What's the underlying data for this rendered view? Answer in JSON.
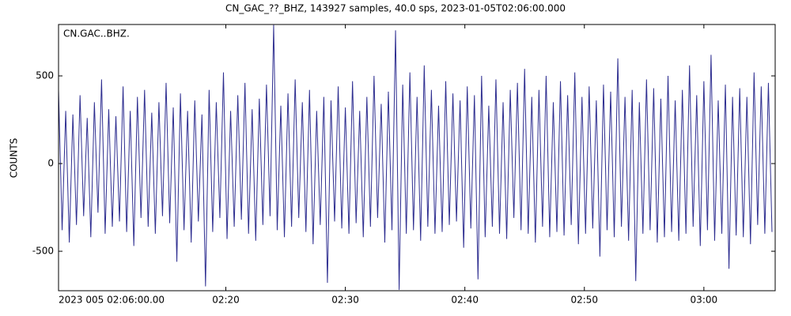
{
  "chart_data": {
    "type": "line",
    "title": "CN_GAC_??_BHZ, 143927 samples, 40.0 sps, 2023-01-05T02:06:00.000",
    "y_label": "COUNTS",
    "x": [
      0,
      18,
      36,
      54,
      72,
      90,
      108,
      126,
      144,
      162,
      180,
      198,
      216,
      234,
      252,
      270,
      288,
      306,
      324,
      342,
      360,
      378,
      396,
      414,
      432,
      450,
      468,
      486,
      504,
      522,
      540,
      558,
      576,
      594,
      612,
      630,
      648,
      666,
      684,
      702,
      720,
      738,
      756,
      774,
      792,
      810,
      828,
      846,
      864,
      882,
      900,
      918,
      936,
      954,
      972,
      990,
      1008,
      1026,
      1044,
      1062,
      1080,
      1098,
      1116,
      1134,
      1152,
      1170,
      1188,
      1206,
      1224,
      1242,
      1260,
      1278,
      1296,
      1314,
      1332,
      1350,
      1368,
      1386,
      1404,
      1422,
      1440,
      1458,
      1476,
      1494,
      1512,
      1530,
      1548,
      1566,
      1584,
      1602,
      1620,
      1638,
      1656,
      1674,
      1692,
      1710,
      1728,
      1746,
      1764,
      1782,
      1800,
      1818,
      1836,
      1854,
      1872,
      1890,
      1908,
      1926,
      1944,
      1962,
      1980,
      1998,
      2016,
      2034,
      2052,
      2070,
      2088,
      2106,
      2124,
      2142,
      2160,
      2178,
      2196,
      2214,
      2232,
      2250,
      2268,
      2286,
      2304,
      2322,
      2340,
      2358,
      2376,
      2394,
      2412,
      2430,
      2448,
      2466,
      2484,
      2502,
      2520,
      2538,
      2556,
      2574,
      2592,
      2610,
      2628,
      2646,
      2664,
      2682,
      2700,
      2718,
      2736,
      2754,
      2772,
      2790,
      2808,
      2826,
      2844,
      2862,
      2880,
      2898,
      2916,
      2934,
      2952,
      2970,
      2988,
      3006,
      3024,
      3042,
      3060,
      3078,
      3096,
      3114,
      3132,
      3150,
      3168,
      3186,
      3204,
      3222,
      3240,
      3258,
      3276,
      3294,
      3312,
      3330,
      3348,
      3366,
      3384,
      3402,
      3420,
      3438,
      3456,
      3474,
      3492,
      3510,
      3528,
      3546,
      3564,
      3582
    ],
    "series": [
      {
        "name": "CN.GAC..BHZ.",
        "color": "#2e2e90",
        "values": [
          420,
          -380,
          300,
          -450,
          280,
          -350,
          390,
          -300,
          260,
          -420,
          350,
          -280,
          480,
          -400,
          310,
          -360,
          270,
          -330,
          440,
          -390,
          300,
          -470,
          380,
          -310,
          420,
          -360,
          290,
          -400,
          350,
          -300,
          460,
          -340,
          320,
          -560,
          400,
          -380,
          300,
          -450,
          360,
          -330,
          280,
          -700,
          420,
          -390,
          350,
          -310,
          520,
          -430,
          300,
          -360,
          390,
          -320,
          460,
          -400,
          310,
          -440,
          370,
          -350,
          450,
          -300,
          790,
          -380,
          330,
          -420,
          400,
          -360,
          480,
          -310,
          350,
          -390,
          420,
          -460,
          300,
          -350,
          380,
          -680,
          360,
          -330,
          440,
          -370,
          320,
          -400,
          470,
          -340,
          300,
          -420,
          380,
          -360,
          500,
          -310,
          340,
          -450,
          410,
          -380,
          760,
          -720,
          450,
          -400,
          520,
          -380,
          380,
          -440,
          560,
          -360,
          420,
          -400,
          330,
          -390,
          470,
          -350,
          400,
          -330,
          360,
          -480,
          440,
          -370,
          390,
          -660,
          500,
          -420,
          330,
          -360,
          480,
          -400,
          350,
          -430,
          420,
          -310,
          460,
          -380,
          540,
          -400,
          380,
          -450,
          420,
          -360,
          500,
          -420,
          350,
          -390,
          470,
          -410,
          390,
          -350,
          520,
          -460,
          380,
          -400,
          440,
          -370,
          360,
          -530,
          450,
          -380,
          410,
          -420,
          600,
          -360,
          380,
          -440,
          420,
          -670,
          350,
          -400,
          480,
          -380,
          430,
          -450,
          370,
          -420,
          500,
          -390,
          360,
          -440,
          420,
          -400,
          560,
          -360,
          390,
          -470,
          470,
          -380,
          620,
          -440,
          360,
          -400,
          450,
          -600,
          380,
          -410,
          430,
          -420,
          380,
          -460,
          520,
          -350,
          440,
          -400,
          460,
          -390
        ]
      }
    ],
    "xlim": [
      0,
      3598
    ],
    "xticks": [
      {
        "value": 0,
        "label": "2023 005 02:06:00.00"
      },
      {
        "value": 840,
        "label": "02:20"
      },
      {
        "value": 1440,
        "label": "02:30"
      },
      {
        "value": 2040,
        "label": "02:40"
      },
      {
        "value": 2640,
        "label": "02:50"
      },
      {
        "value": 3240,
        "label": "03:00"
      }
    ],
    "ylim": [
      -725,
      793
    ],
    "yticks": [
      -500,
      0,
      500
    ]
  }
}
